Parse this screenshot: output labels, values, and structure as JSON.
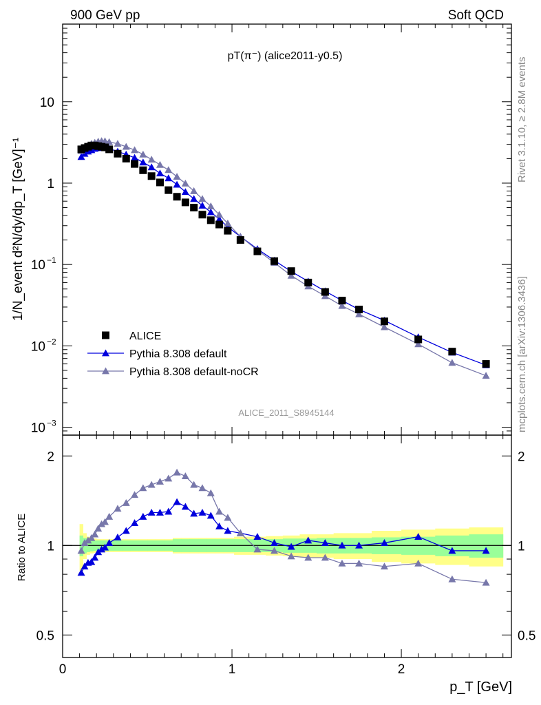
{
  "header": {
    "left": "900 GeV pp",
    "right": "Soft QCD"
  },
  "side": {
    "rivet": "Rivet 3.1.10, ≥ 2.8M events",
    "mcplots": "mcplots.cern.ch [arXiv:1306.3436]"
  },
  "chart_data": {
    "type": "scatter",
    "title": "pT(π⁻) (alice2011-y0.5)",
    "watermark": "ALICE_2011_S8945144",
    "xlabel": "p_T [GeV]",
    "ylabel": "1/N_event d²N/dy/dp_T [GeV]⁻¹",
    "ratio_ylabel": "Ratio to ALICE",
    "xlim": [
      0,
      2.65
    ],
    "ylim": [
      0.0008,
      90
    ],
    "yscale": "log",
    "ratio_ylim": [
      0.42,
      2.35
    ],
    "ratio_yscale": "log",
    "x_ticks": [
      {
        "value": 0,
        "label": "0"
      },
      {
        "value": 1,
        "label": "1"
      },
      {
        "value": 2,
        "label": "2"
      }
    ],
    "y_ticks": [
      {
        "value": 10,
        "label": "10",
        "exp": ""
      },
      {
        "value": 1,
        "label": "1",
        "exp": ""
      },
      {
        "value": 0.1,
        "label": "10",
        "exp": "−1"
      },
      {
        "value": 0.01,
        "label": "10",
        "exp": "−2"
      },
      {
        "value": 0.001,
        "label": "10",
        "exp": "−3"
      }
    ],
    "ratio_y_ticks": [
      {
        "value": 2,
        "label": "2"
      },
      {
        "value": 1,
        "label": "1"
      },
      {
        "value": 0.5,
        "label": "0.5"
      }
    ],
    "legend_position": "lower-left",
    "grid": false,
    "x": [
      0.11,
      0.13,
      0.15,
      0.17,
      0.19,
      0.21,
      0.23,
      0.25,
      0.275,
      0.325,
      0.375,
      0.425,
      0.475,
      0.525,
      0.575,
      0.625,
      0.675,
      0.725,
      0.775,
      0.825,
      0.875,
      0.925,
      0.975,
      1.05,
      1.15,
      1.25,
      1.35,
      1.45,
      1.55,
      1.65,
      1.75,
      1.9,
      2.1,
      2.3,
      2.5
    ],
    "series": [
      {
        "name": "ALICE",
        "color": "#000000",
        "marker": "square",
        "values": [
          2.6,
          2.7,
          2.8,
          2.9,
          2.9,
          2.85,
          2.8,
          2.75,
          2.6,
          2.3,
          2.0,
          1.72,
          1.44,
          1.22,
          1.02,
          0.82,
          0.68,
          0.58,
          0.5,
          0.41,
          0.35,
          0.31,
          0.26,
          0.2,
          0.145,
          0.11,
          0.083,
          0.06,
          0.046,
          0.036,
          0.028,
          0.02,
          0.012,
          0.0085,
          0.006
        ],
        "band_inner": [
          0.08,
          0.06,
          0.05,
          0.045,
          0.04,
          0.04,
          0.04,
          0.04,
          0.04,
          0.04,
          0.04,
          0.04,
          0.04,
          0.04,
          0.04,
          0.04,
          0.05,
          0.05,
          0.05,
          0.05,
          0.05,
          0.05,
          0.05,
          0.05,
          0.05,
          0.05,
          0.055,
          0.055,
          0.06,
          0.06,
          0.06,
          0.065,
          0.07,
          0.08,
          0.09
        ],
        "band_outer": [
          0.18,
          0.1,
          0.07,
          0.06,
          0.055,
          0.05,
          0.05,
          0.05,
          0.05,
          0.05,
          0.05,
          0.05,
          0.05,
          0.05,
          0.05,
          0.05,
          0.06,
          0.06,
          0.06,
          0.06,
          0.06,
          0.06,
          0.06,
          0.07,
          0.07,
          0.075,
          0.08,
          0.09,
          0.09,
          0.1,
          0.1,
          0.12,
          0.13,
          0.14,
          0.15
        ]
      },
      {
        "name": "Pythia 8.308 default",
        "color": "#0000dd",
        "marker": "triangle",
        "values": [
          2.1,
          2.3,
          2.45,
          2.55,
          2.65,
          2.7,
          2.72,
          2.7,
          2.65,
          2.45,
          2.25,
          2.05,
          1.8,
          1.57,
          1.32,
          1.15,
          0.96,
          0.78,
          0.64,
          0.53,
          0.44,
          0.36,
          0.29,
          0.22,
          0.155,
          0.112,
          0.082,
          0.062,
          0.047,
          0.036,
          0.028,
          0.0205,
          0.0128,
          0.0083,
          0.0058
        ],
        "ratio": [
          0.81,
          0.85,
          0.875,
          0.88,
          0.91,
          0.95,
          0.97,
          0.985,
          1.02,
          1.065,
          1.12,
          1.19,
          1.25,
          1.29,
          1.29,
          1.3,
          1.4,
          1.35,
          1.28,
          1.29,
          1.26,
          1.16,
          1.12,
          1.1,
          1.07,
          1.02,
          0.99,
          1.04,
          1.02,
          1.0,
          1.0,
          1.02,
          1.07,
          0.96,
          0.96
        ]
      },
      {
        "name": "Pythia 8.308 default-noCR",
        "color": "#7777aa",
        "marker": "triangle",
        "values": [
          2.5,
          2.75,
          2.9,
          3.05,
          3.15,
          3.25,
          3.3,
          3.28,
          3.2,
          3.05,
          2.8,
          2.55,
          2.25,
          1.95,
          1.68,
          1.45,
          1.2,
          0.99,
          0.8,
          0.64,
          0.52,
          0.41,
          0.32,
          0.22,
          0.15,
          0.105,
          0.073,
          0.054,
          0.041,
          0.031,
          0.0245,
          0.017,
          0.0105,
          0.0062,
          0.0043
        ],
        "ratio": [
          0.96,
          1.02,
          1.04,
          1.06,
          1.09,
          1.14,
          1.18,
          1.2,
          1.25,
          1.33,
          1.39,
          1.48,
          1.56,
          1.6,
          1.64,
          1.68,
          1.76,
          1.71,
          1.6,
          1.56,
          1.5,
          1.3,
          1.24,
          1.1,
          0.97,
          0.96,
          0.92,
          0.91,
          0.91,
          0.87,
          0.87,
          0.85,
          0.87,
          0.77,
          0.75
        ]
      }
    ]
  }
}
